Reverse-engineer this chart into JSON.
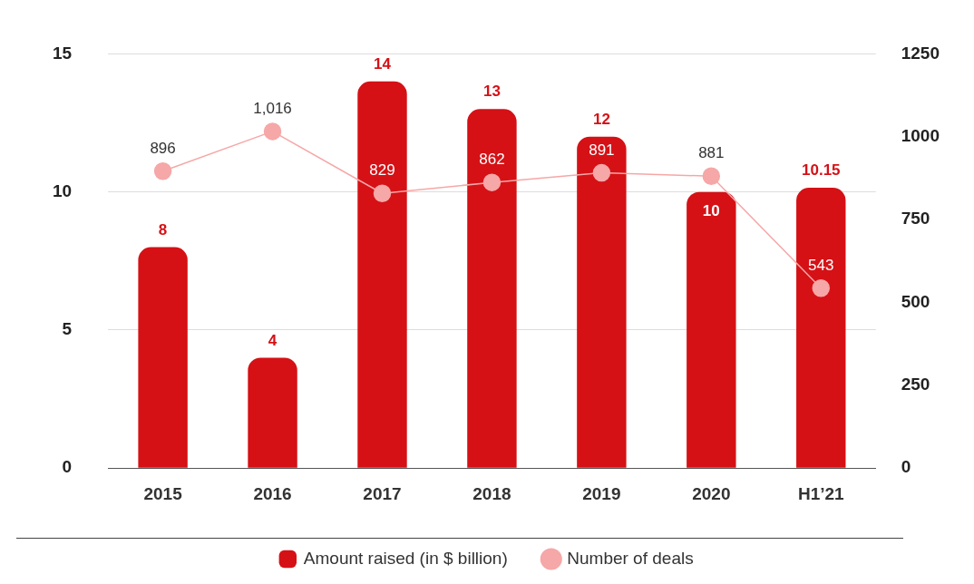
{
  "chart_data": {
    "type": "bar",
    "categories": [
      "2015",
      "2016",
      "2017",
      "2018",
      "2019",
      "2020",
      "H1’21"
    ],
    "series": [
      {
        "name": "Amount raised (in $ billion)",
        "color": "#d51116",
        "values": [
          8,
          4,
          14,
          13,
          12,
          10,
          10.15
        ]
      },
      {
        "name": "Number of deals",
        "type": "line",
        "axis": "y2",
        "color": "#f6a7a7",
        "values": [
          896,
          1016,
          829,
          862,
          891,
          881,
          543
        ],
        "value_labels": [
          "896",
          "1,016",
          "829",
          "862",
          "891",
          "881",
          "543"
        ]
      }
    ],
    "ylim": [
      0,
      15
    ],
    "yticks": [
      0,
      5,
      10,
      15
    ],
    "y2lim": [
      0,
      1250
    ],
    "y2ticks": [
      0,
      250,
      500,
      750,
      1000,
      1250
    ],
    "grid": "y",
    "legend": "bottom",
    "marker": "circle",
    "data_labels": true
  }
}
